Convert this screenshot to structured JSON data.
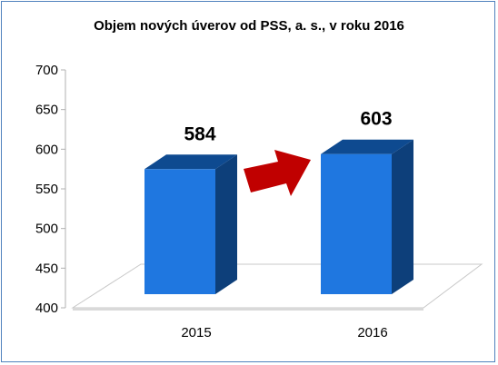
{
  "chart_data": {
    "type": "bar",
    "title": "Objem nových úverov od PSS, a. s., v roku 2016",
    "categories": [
      "2015",
      "2016"
    ],
    "values": [
      584,
      603
    ],
    "data_labels": [
      "584",
      "603"
    ],
    "ylim": [
      400,
      700
    ],
    "yticks": [
      "400",
      "450",
      "500",
      "550",
      "600",
      "650",
      "700"
    ],
    "xlabel": "",
    "ylabel": "",
    "three_d": true,
    "annotation": "red-arrow-right",
    "colors": {
      "bar_front": "#1f77e0",
      "bar_side": "#0d3f7a",
      "bar_top": "#0e4a90",
      "arrow": "#c00000",
      "frame": "#4f81bd"
    }
  }
}
